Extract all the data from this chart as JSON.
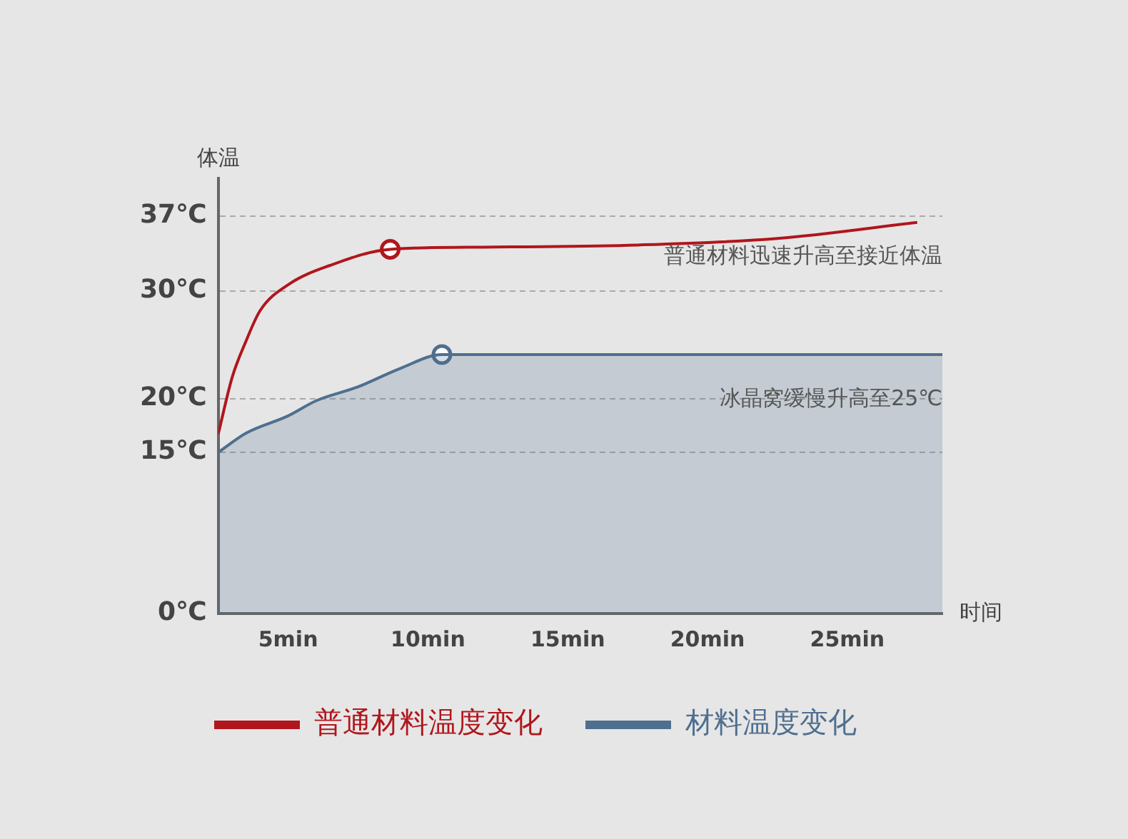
{
  "chart_data": {
    "type": "line",
    "ylabel": "体温",
    "xlabel": "时间",
    "xlim": [
      2.5,
      28.4
    ],
    "xticks": [
      {
        "value": 5,
        "label": "5min"
      },
      {
        "value": 10,
        "label": "10min"
      },
      {
        "value": 15,
        "label": "15min"
      },
      {
        "value": 20,
        "label": "20min"
      },
      {
        "value": 25,
        "label": "25min"
      }
    ],
    "ylim": [
      0,
      40.5
    ],
    "yticks": [
      {
        "value": 0,
        "label": "0℃"
      },
      {
        "value": 15,
        "label": "15℃"
      },
      {
        "value": 20,
        "label": "20℃"
      },
      {
        "value": 30,
        "label": "30℃"
      },
      {
        "value": 37,
        "label": "37℃"
      }
    ],
    "grid": "y",
    "legend": "bottom",
    "line_style": "solid",
    "annotations": [
      "普通材料迅速升高至接近体温",
      "冰晶窝缓慢升高至25℃"
    ],
    "series": [
      {
        "name": "普通材料温度变化",
        "color": "#b0161c",
        "x": [
          2.5,
          3,
          3.5,
          4,
          5,
          6.5,
          8.65,
          12,
          17.5,
          22.5,
          27.5
        ],
        "values": [
          16.7,
          22,
          25.4,
          28.2,
          30.6,
          32.4,
          33.9,
          34.1,
          34.3,
          34.9,
          36.4
        ]
      },
      {
        "name": "材料温度变化",
        "type": "area",
        "color": "#4f6f8f",
        "x": [
          2.5,
          3.5,
          5,
          6,
          7.5,
          9,
          10.5,
          15,
          20,
          28.4
        ],
        "values": [
          15,
          16.8,
          18.4,
          19.8,
          21.1,
          22.8,
          24.1,
          24.1,
          24.1,
          24.1
        ]
      },
      {
        "type": "scatter",
        "color": "#b0161c",
        "marker": "circle",
        "x": [
          8.65
        ],
        "values": [
          33.9
        ]
      },
      {
        "type": "scatter",
        "color": "#4f6f8f",
        "marker": "circle",
        "x": [
          10.5
        ],
        "values": [
          24.1
        ]
      }
    ]
  }
}
